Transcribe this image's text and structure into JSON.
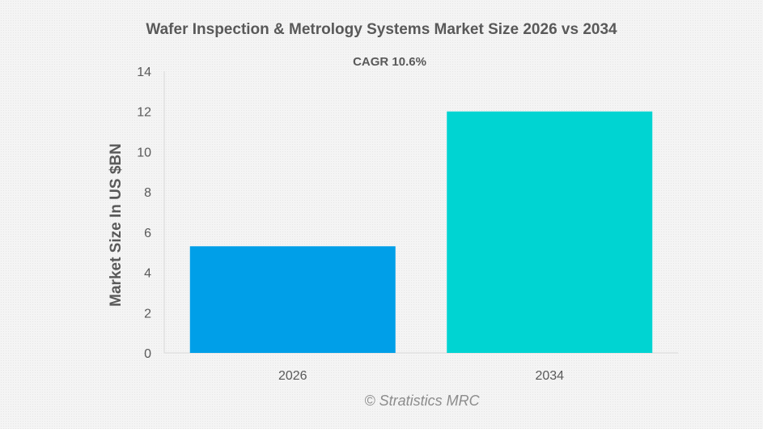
{
  "chart_data": {
    "type": "bar",
    "title": "Wafer Inspection & Metrology Systems Market Size 2026 vs 2034",
    "subtitle": "CAGR 10.6%",
    "categories": [
      "2026",
      "2034"
    ],
    "values": [
      5.3,
      12.0
    ],
    "bar_colors": [
      "#009fe8",
      "#00d4d2"
    ],
    "xlabel": "",
    "ylabel": "Market Size In US $BN",
    "ylim": [
      0,
      14
    ],
    "yticks": [
      0,
      2,
      4,
      6,
      8,
      10,
      12,
      14
    ],
    "grid": false,
    "legend": "none"
  },
  "watermark": "© Stratistics MRC"
}
